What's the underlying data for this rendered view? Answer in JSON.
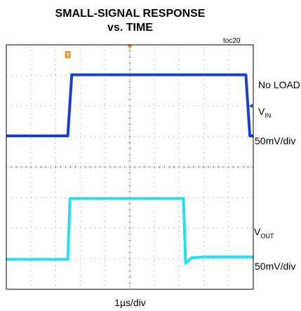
{
  "title_line1": "SMALL-SIGNAL RESPONSE",
  "title_line2": "vs. TIME",
  "figure_id": "toc20",
  "labels": {
    "load": "No LOAD",
    "vin_main": "V",
    "vin_sub": "IN",
    "vin_scale": "50mV/div",
    "vout_main": "V",
    "vout_sub": "OUT",
    "vout_scale": "50mV/div",
    "time_scale": "1µs/div"
  },
  "markers": {
    "trigger": "T"
  },
  "colors": {
    "vin": "#1a3fd9",
    "vout": "#22e0f0",
    "marker": "#f08a24",
    "grid": "#9a9a9a",
    "frame": "#000000"
  },
  "chart_data": {
    "type": "line",
    "title": "SMALL-SIGNAL RESPONSE vs. TIME",
    "xlabel": "1µs/div",
    "grid": true,
    "divisions": {
      "x": 10,
      "y": 8
    },
    "x_unit": "div",
    "y_unit": "div",
    "xlim": [
      0,
      10
    ],
    "ylim": [
      0,
      8
    ],
    "series": [
      {
        "name": "VIN",
        "color": "#1a3fd9",
        "x": [
          0,
          2.49,
          2.65,
          9.7,
          9.86,
          10
        ],
        "y": [
          5.02,
          5.02,
          7.02,
          7.02,
          5.02,
          5.02
        ]
      },
      {
        "name": "VOUT",
        "color": "#22e0f0",
        "x": [
          0,
          2.49,
          2.58,
          7.17,
          7.26,
          7.5,
          8.0,
          10
        ],
        "y": [
          0.98,
          0.98,
          2.97,
          2.97,
          0.85,
          1.03,
          1.06,
          1.06
        ]
      }
    ]
  }
}
